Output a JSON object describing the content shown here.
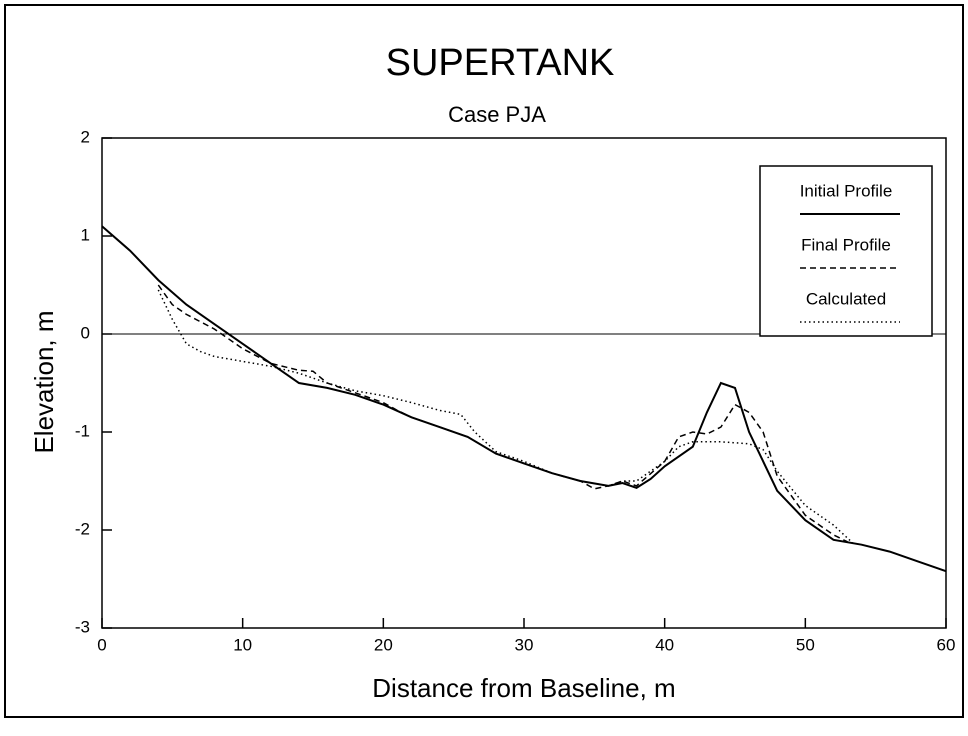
{
  "chart_data": {
    "type": "line",
    "title": "SUPERTANK",
    "subtitle": "Case PJA",
    "x_label": "Distance from Baseline, m",
    "y_label": "Elevation, m",
    "xlim": [
      0,
      60
    ],
    "xticks": [
      0,
      10,
      20,
      30,
      40,
      50,
      60
    ],
    "ylim": [
      -3,
      2
    ],
    "yticks": [
      -3,
      -2,
      -1,
      0,
      1,
      2
    ],
    "legend": "upper right",
    "series": [
      {
        "name": "Initial Profile",
        "color": "#000",
        "style": "solid",
        "x": [
          0,
          2,
          4,
          6,
          8,
          10,
          12,
          14,
          16,
          18,
          20,
          22,
          24,
          26,
          28,
          30,
          32,
          34,
          36,
          37,
          38,
          39,
          40,
          42,
          43,
          44,
          45,
          46,
          48,
          50,
          52,
          54,
          56,
          58,
          60
        ],
        "values": [
          1.1,
          0.85,
          0.55,
          0.3,
          0.1,
          -0.1,
          -0.3,
          -0.5,
          -0.55,
          -0.62,
          -0.72,
          -0.85,
          -0.95,
          -1.05,
          -1.22,
          -1.32,
          -1.42,
          -1.5,
          -1.55,
          -1.52,
          -1.57,
          -1.48,
          -1.35,
          -1.15,
          -0.8,
          -0.5,
          -0.55,
          -1.0,
          -1.6,
          -1.9,
          -2.1,
          -2.15,
          -2.22,
          -2.32,
          -2.42
        ]
      },
      {
        "name": "Final Profile",
        "color": "#000",
        "style": "dashed",
        "x": [
          4,
          5,
          6,
          8,
          10,
          12,
          14,
          15,
          16,
          18,
          20,
          21,
          22,
          24,
          26,
          28,
          30,
          32,
          34,
          35,
          36,
          37,
          38,
          40,
          41,
          42,
          43,
          44,
          45,
          46,
          47,
          48,
          50,
          52,
          53
        ],
        "values": [
          0.5,
          0.3,
          0.2,
          0.05,
          -0.15,
          -0.3,
          -0.37,
          -0.38,
          -0.5,
          -0.6,
          -0.7,
          -0.78,
          -0.85,
          -0.95,
          -1.05,
          -1.22,
          -1.32,
          -1.42,
          -1.5,
          -1.58,
          -1.55,
          -1.5,
          -1.55,
          -1.3,
          -1.05,
          -1.0,
          -1.02,
          -0.95,
          -0.72,
          -0.8,
          -1.0,
          -1.45,
          -1.85,
          -2.05,
          -2.12
        ]
      },
      {
        "name": "Calculated",
        "color": "#000",
        "style": "dotted",
        "x": [
          4,
          5,
          6,
          7,
          8,
          10,
          12,
          14,
          16,
          18,
          20,
          22,
          24,
          25.5,
          26.5,
          28,
          30,
          32,
          34,
          36,
          37,
          38,
          40,
          41,
          42,
          44,
          46,
          47,
          48,
          50,
          52,
          53.5
        ],
        "values": [
          0.45,
          0.15,
          -0.1,
          -0.18,
          -0.23,
          -0.28,
          -0.33,
          -0.4,
          -0.5,
          -0.58,
          -0.63,
          -0.7,
          -0.78,
          -0.82,
          -1.0,
          -1.2,
          -1.3,
          -1.42,
          -1.5,
          -1.55,
          -1.5,
          -1.5,
          -1.3,
          -1.15,
          -1.1,
          -1.1,
          -1.12,
          -1.18,
          -1.4,
          -1.75,
          -1.95,
          -2.15
        ]
      }
    ]
  }
}
